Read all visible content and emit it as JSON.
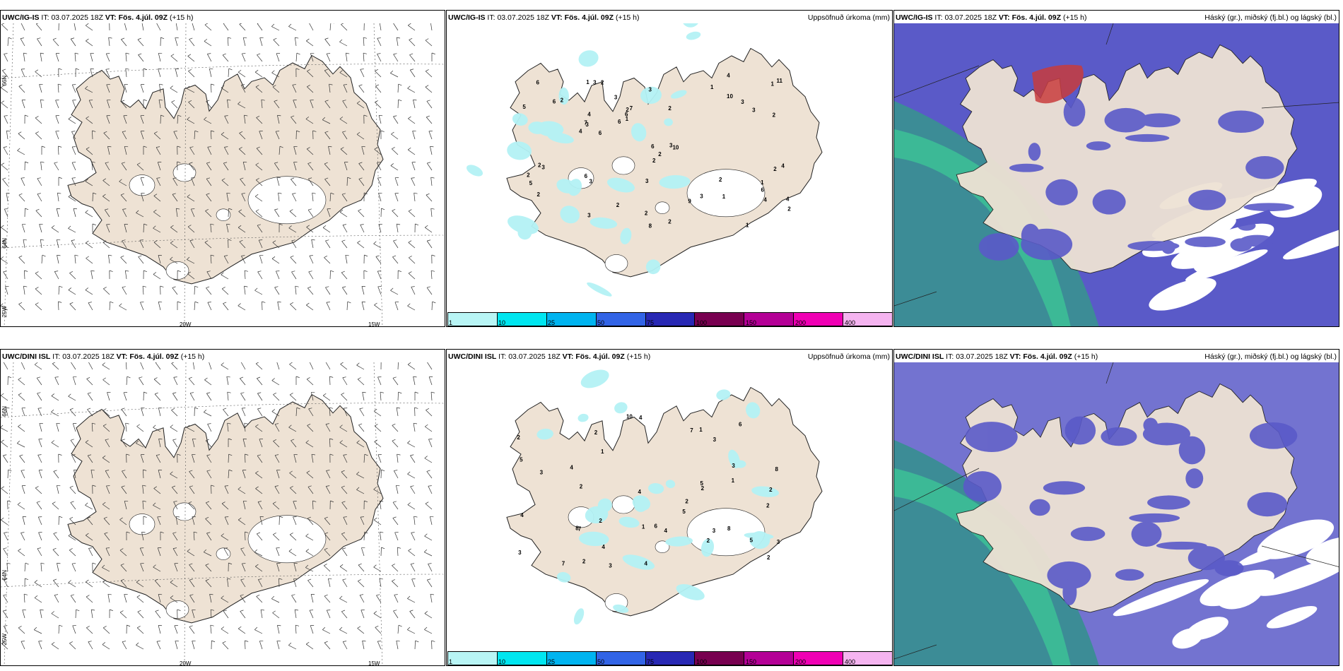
{
  "panels": [
    {
      "model": "UWC/IG-IS",
      "it_label": "IT:",
      "it_value": "03.07.2025 18Z",
      "vt_label": "VT:",
      "vt_value": "Fös. 4.júl. 09Z",
      "lead": "(+15 h)",
      "right_title": "",
      "type": "wind"
    },
    {
      "model": "UWC/IG-IS",
      "it_label": "IT:",
      "it_value": "03.07.2025 18Z",
      "vt_label": "VT:",
      "vt_value": "Fös. 4.júl. 09Z",
      "lead": "(+15 h)",
      "right_title": "Uppsöfnuð úrkoma (mm)",
      "type": "precip"
    },
    {
      "model": "UWC/IG-IS",
      "it_label": "IT:",
      "it_value": "03.07.2025 18Z",
      "vt_label": "VT:",
      "vt_value": "Fös. 4.júl. 09Z",
      "lead": "(+15 h)",
      "right_title": "Háský (gr.), miðský (fj.bl.) og lágský (bl.)",
      "type": "cloud"
    },
    {
      "model": "UWC/DINI ISL",
      "it_label": "IT:",
      "it_value": "03.07.2025 18Z",
      "vt_label": "VT:",
      "vt_value": "Fös. 4.júl. 09Z",
      "lead": "(+15 h)",
      "right_title": "",
      "type": "wind"
    },
    {
      "model": "UWC/DINI ISL",
      "it_label": "IT:",
      "it_value": "03.07.2025 18Z",
      "vt_label": "VT:",
      "vt_value": "Fös. 4.júl. 09Z",
      "lead": "(+15 h)",
      "right_title": "Uppsöfnuð úrkoma (mm)",
      "type": "precip"
    },
    {
      "model": "UWC/DINI ISL",
      "it_label": "IT:",
      "it_value": "03.07.2025 18Z",
      "vt_label": "VT:",
      "vt_value": "Fös. 4.júl. 09Z",
      "lead": "(+15 h)",
      "right_title": "Háský (gr.), miðský (fj.bl.) og lágský (bl.)",
      "type": "cloud"
    }
  ],
  "axis_labels": {
    "lat66": "66N",
    "lat64": "64N",
    "lon25": "25W",
    "lon20": "20W",
    "lon15": "15W"
  },
  "colorbar": {
    "colors": [
      "#b8f5f5",
      "#00e6f0",
      "#00b4f0",
      "#3264e6",
      "#2828b4",
      "#780050",
      "#b40096",
      "#f000b4",
      "#f5b4f0"
    ],
    "labels": [
      "1",
      "10",
      "25",
      "50",
      "75",
      "100",
      "150",
      "200",
      "400"
    ]
  },
  "colors": {
    "land": "#eee2d4",
    "glacier": "#ffffff",
    "precip": "#b4f2f5",
    "cloud_low": "#5a5ac8",
    "cloud_mid": "#3c8c96",
    "cloud_high_green": "#3cc896",
    "cloud_red": "#c83c3c"
  },
  "precip_labels_top": [
    "2",
    "9",
    "6",
    "1",
    "3",
    "1",
    "2",
    "3",
    "2",
    "2",
    "8",
    "6",
    "2",
    "1",
    "2",
    "4",
    "4",
    "3",
    "4",
    "1",
    "3",
    "4",
    "2",
    "6",
    "5",
    "3",
    "7",
    "10",
    "11",
    "3",
    "3",
    "6",
    "10",
    "7",
    "6",
    "4",
    "6",
    "2",
    "2",
    "3",
    "2",
    "3",
    "2",
    "6",
    "5",
    "2",
    "2",
    "3",
    "6",
    "4",
    "3",
    "1",
    "2",
    "1",
    "1",
    "2",
    "3",
    "2"
  ],
  "precip_labels_bottom": [
    "4",
    "2",
    "3",
    "2",
    "2",
    "6",
    "5",
    "4",
    "3",
    "8",
    "2",
    "2",
    "2",
    "4",
    "4",
    "5",
    "2",
    "7",
    "3",
    "5",
    "6",
    "5",
    "1",
    "1",
    "1",
    "4",
    "4",
    "7",
    "8",
    "2",
    "4",
    "2",
    "3",
    "7",
    "10",
    "8",
    "2",
    "3",
    "3",
    "2",
    "3",
    "1"
  ]
}
